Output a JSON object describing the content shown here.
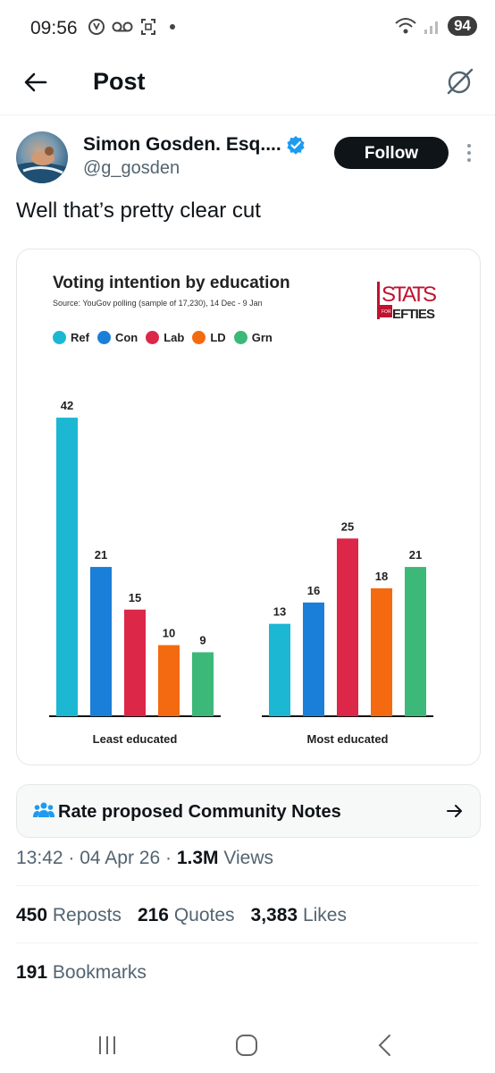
{
  "status_bar": {
    "time": "09:56",
    "battery": "94"
  },
  "header": {
    "title": "Post"
  },
  "author": {
    "name": "Simon Gosden. Esq....",
    "handle": "@g_gosden",
    "follow_label": "Follow"
  },
  "tweet": {
    "text": "Well that’s pretty clear cut"
  },
  "image_card": {
    "title": "Voting intention by education",
    "source": "Source: YouGov polling (sample of 17,230), 14 Dec - 9 Jan",
    "logo_text": "STATS FOR LEFTIES"
  },
  "chart_data": {
    "type": "bar",
    "title": "Voting intention by education",
    "categories": [
      "Least educated",
      "Most educated"
    ],
    "series": [
      {
        "name": "Ref",
        "color": "#1bb7d3",
        "values": [
          42,
          13
        ]
      },
      {
        "name": "Con",
        "color": "#1a7fd9",
        "values": [
          21,
          16
        ]
      },
      {
        "name": "Lab",
        "color": "#dc2748",
        "values": [
          15,
          25
        ]
      },
      {
        "name": "LD",
        "color": "#f46a10",
        "values": [
          10,
          18
        ]
      },
      {
        "name": "Grn",
        "color": "#3cb878",
        "values": [
          9,
          21
        ]
      }
    ],
    "legend_position": "top-left",
    "grid": false
  },
  "community_notes": {
    "label": "Rate proposed Community Notes"
  },
  "meta": {
    "time": "13:42",
    "date": "04 Apr 26",
    "views_count": "1.3M",
    "views_label": "Views"
  },
  "stats": {
    "reposts_count": "450",
    "reposts_label": "Reposts",
    "quotes_count": "216",
    "quotes_label": "Quotes",
    "likes_count": "3,383",
    "likes_label": "Likes",
    "bookmarks_count": "191",
    "bookmarks_label": "Bookmarks"
  },
  "icons": [
    "back-arrow-icon",
    "grok-icon",
    "verified-icon",
    "more-icon",
    "community-notes-icon",
    "arrow-right-icon",
    "recent-apps-icon",
    "home-icon",
    "back-icon"
  ]
}
